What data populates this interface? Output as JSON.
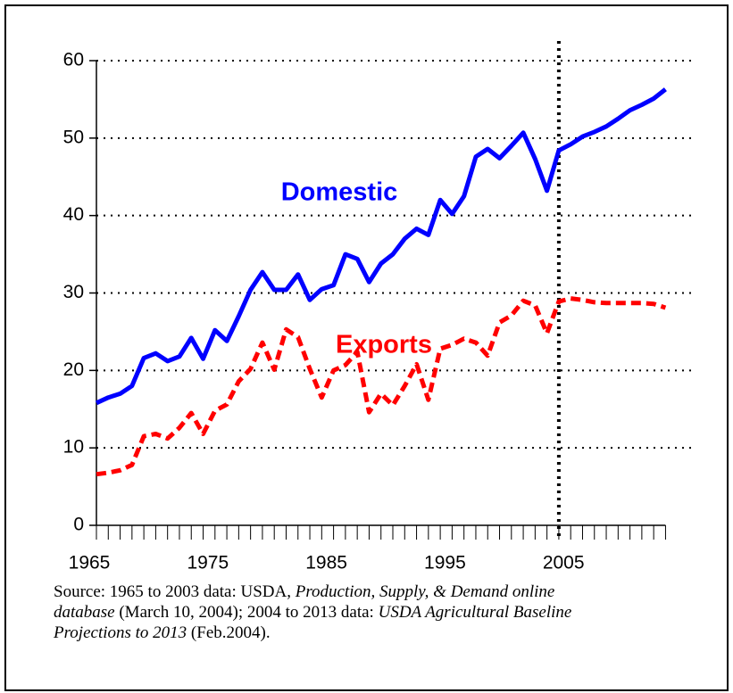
{
  "chart_data": {
    "type": "line",
    "x": [
      1965,
      1966,
      1967,
      1968,
      1969,
      1970,
      1971,
      1972,
      1973,
      1974,
      1975,
      1976,
      1977,
      1978,
      1979,
      1980,
      1981,
      1982,
      1983,
      1984,
      1985,
      1986,
      1987,
      1988,
      1989,
      1990,
      1991,
      1992,
      1993,
      1994,
      1995,
      1996,
      1997,
      1998,
      1999,
      2000,
      2001,
      2002,
      2003,
      2004,
      2005,
      2006,
      2007,
      2008,
      2009,
      2010,
      2011,
      2012,
      2013
    ],
    "series": [
      {
        "name": "Domestic",
        "color": "#0000ff",
        "dashed": false,
        "values": [
          15.8,
          16.5,
          17,
          18,
          21.6,
          22.2,
          21.2,
          21.8,
          24.2,
          21.5,
          25.2,
          23.8,
          27,
          30.4,
          32.7,
          30.4,
          30.4,
          32.4,
          29.1,
          30.5,
          31,
          35,
          34.4,
          31.4,
          33.8,
          35,
          37,
          38.3,
          37.5,
          42,
          40.2,
          42.5,
          47.6,
          48.6,
          47.4,
          49,
          50.7,
          47.3,
          43.2,
          48.4,
          49.2,
          50.2,
          50.8,
          51.5,
          52.5,
          53.6,
          54.3,
          55.1,
          56.3
        ]
      },
      {
        "name": "Exports",
        "color": "#ff0000",
        "dashed": true,
        "values": [
          6.6,
          6.8,
          7.1,
          7.8,
          11.5,
          11.8,
          11.2,
          12.6,
          14.5,
          11.8,
          14.8,
          15.6,
          18.6,
          20.2,
          23.6,
          20.1,
          25.3,
          24.3,
          20.2,
          16.5,
          20,
          20.7,
          22.4,
          14.6,
          17,
          15.5,
          18,
          20.8,
          16.2,
          22.8,
          23.3,
          24.1,
          23.6,
          21.9,
          26.2,
          27.1,
          29,
          28.4,
          24.8,
          28.9,
          29.3,
          29.1,
          28.8,
          28.7,
          28.7,
          28.7,
          28.7,
          28.6,
          28.1
        ]
      }
    ],
    "xlim": [
      1965,
      2015
    ],
    "xticks": [
      1965,
      1975,
      1985,
      1995,
      2005
    ],
    "ylim": [
      0,
      60
    ],
    "yticks": [
      0,
      10,
      20,
      30,
      40,
      50,
      60
    ],
    "grid": true,
    "projection_start": 2004,
    "source": [
      {
        "text": "Source: 1965 to 2003 data: USDA, ",
        "italic": false
      },
      {
        "text": "Production, Supply, & Demand online",
        "italic": true
      },
      {
        "text": "database",
        "italic": true,
        "newline": true
      },
      {
        "text": " (March 10, 2004); 2004 to 2013 data: ",
        "italic": false
      },
      {
        "text": "USDA Agricultural Baseline",
        "italic": true
      },
      {
        "text": "Projections to 2013",
        "italic": true,
        "newline": true
      },
      {
        "text": " (Feb.2004).",
        "italic": false
      }
    ]
  }
}
